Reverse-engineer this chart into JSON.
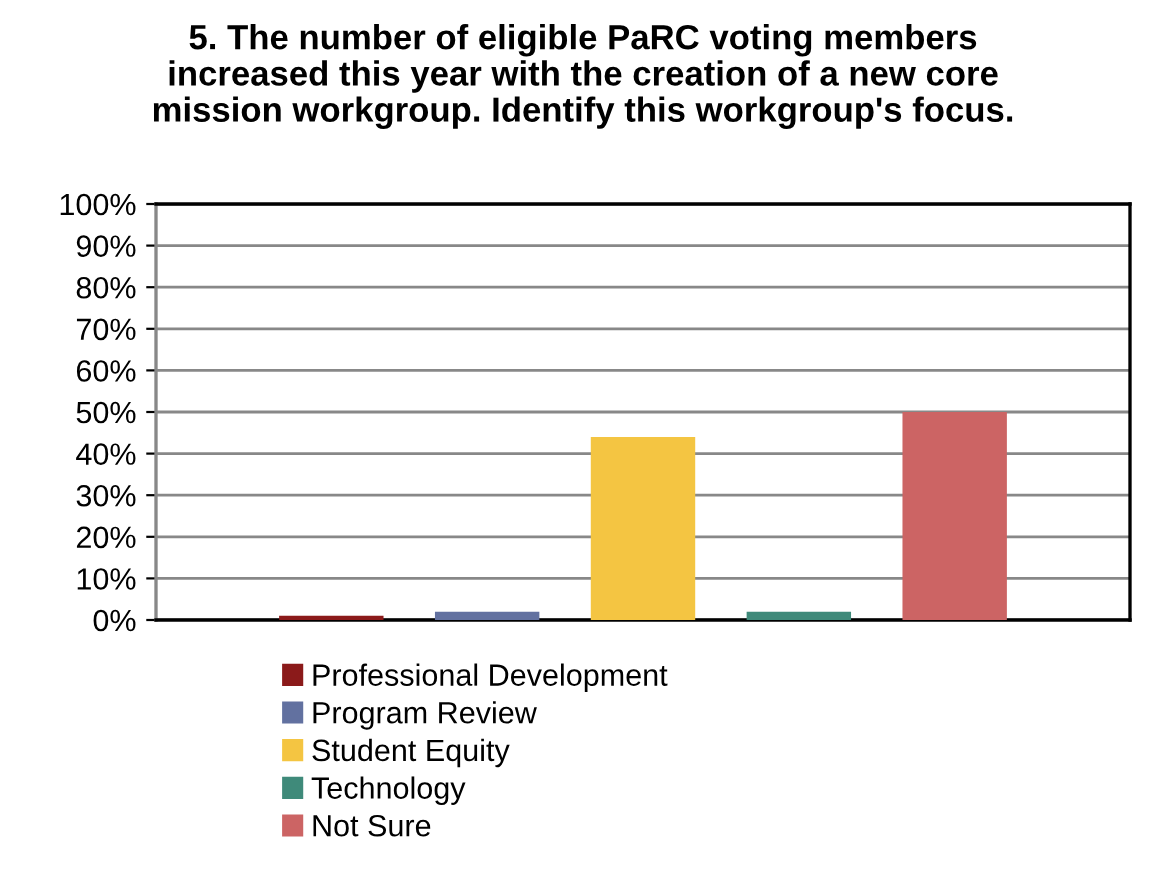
{
  "chart_data": {
    "type": "bar",
    "title": "5. The number of eligible PaRC voting members\nincreased this year with the creation of a new core\nmission workgroup. Identify this workgroup's focus.",
    "categories": [
      null
    ],
    "series": [
      {
        "name": "Professional Development",
        "color": "#8b1a1a",
        "values": [
          1
        ]
      },
      {
        "name": "Program Review",
        "color": "#6271a0",
        "values": [
          2
        ]
      },
      {
        "name": "Student Equity",
        "color": "#f4c542",
        "values": [
          44
        ]
      },
      {
        "name": "Technology",
        "color": "#3f8a7a",
        "values": [
          2
        ]
      },
      {
        "name": "Not Sure",
        "color": "#cc6464",
        "values": [
          50
        ]
      }
    ],
    "ylim": [
      0,
      100
    ],
    "yticks": [
      {
        "value": 0,
        "label": "0%"
      },
      {
        "value": 10,
        "label": "10%"
      },
      {
        "value": 20,
        "label": "20%"
      },
      {
        "value": 30,
        "label": "30%"
      },
      {
        "value": 40,
        "label": "40%"
      },
      {
        "value": 50,
        "label": "50%"
      },
      {
        "value": 60,
        "label": "60%"
      },
      {
        "value": 70,
        "label": "70%"
      },
      {
        "value": 80,
        "label": "80%"
      },
      {
        "value": 90,
        "label": "90%"
      },
      {
        "value": 100,
        "label": "100%"
      }
    ],
    "grid": "y",
    "legend": "bottom"
  }
}
